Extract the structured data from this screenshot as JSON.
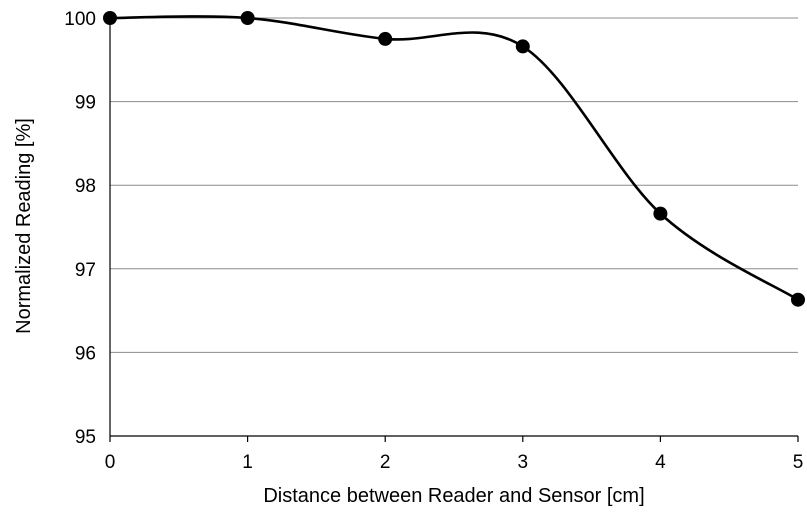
{
  "chart_data": {
    "type": "line",
    "title": "",
    "xlabel": "Distance between Reader and Sensor [cm]",
    "ylabel": "Normalized Reading [%]",
    "xlim": [
      0,
      5
    ],
    "ylim": [
      95,
      100
    ],
    "xticks": [
      0,
      1,
      2,
      3,
      4,
      5
    ],
    "yticks": [
      95,
      96,
      97,
      98,
      99,
      100
    ],
    "grid": "horizontal",
    "line_style": "smoothed",
    "marker": "filled-circle",
    "series_color": "#000000",
    "grid_color": "#8c8c8c",
    "series": [
      {
        "x": [
          0,
          1,
          2,
          3,
          4,
          5
        ],
        "values": [
          100.0,
          100.0,
          99.75,
          99.66,
          97.66,
          96.63
        ]
      }
    ]
  }
}
